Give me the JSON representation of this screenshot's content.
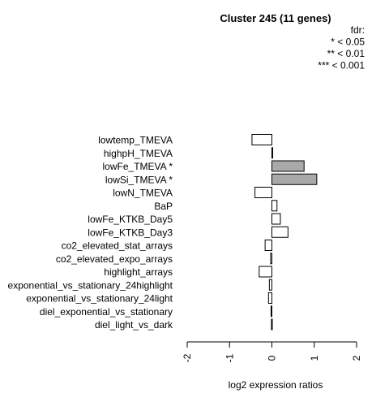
{
  "chart_data": {
    "type": "bar",
    "orientation": "horizontal",
    "title": "Cluster 245 (11 genes)",
    "xlabel": "log2 expression ratios",
    "xlim": [
      -2,
      2
    ],
    "xticks": [
      "-2",
      "-1",
      "0",
      "1",
      "2"
    ],
    "legend": {
      "placement": "top-right",
      "lines": [
        "fdr:",
        "* < 0.05",
        "** < 0.01",
        "*** < 0.001"
      ]
    },
    "categories": [
      "lowtemp_TMEVA",
      "highpH_TMEVA",
      "lowFe_TMEVA *",
      "lowSi_TMEVA *",
      "lowN_TMEVA",
      "BaP",
      "lowFe_KTKB_Day5",
      "lowFe_KTKB_Day3",
      "co2_elevated_stat_arrays",
      "co2_elevated_expo_arrays",
      "highlight_arrays",
      "exponential_vs_stationary_24highlight",
      "exponential_vs_stationary_24light",
      "diel_exponential_vs_stationary",
      "diel_light_vs_dark"
    ],
    "values": [
      -0.47,
      0.02,
      0.76,
      1.06,
      -0.4,
      0.12,
      0.2,
      0.38,
      -0.16,
      -0.03,
      -0.3,
      -0.06,
      -0.08,
      -0.02,
      -0.01
    ],
    "significant": [
      false,
      false,
      true,
      true,
      false,
      false,
      false,
      false,
      false,
      false,
      false,
      false,
      false,
      false,
      false
    ],
    "colors": {
      "significant": "#a9a9a9",
      "normal": "#ffffff",
      "stroke": "#000000"
    }
  }
}
